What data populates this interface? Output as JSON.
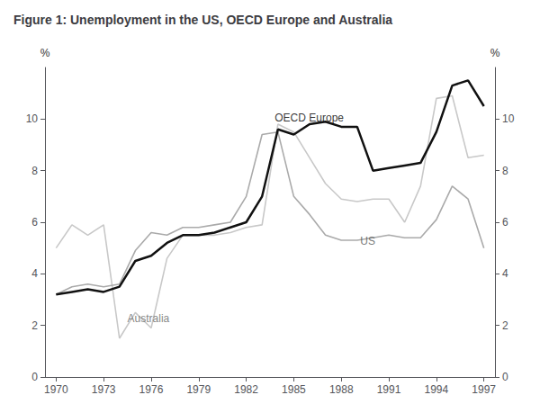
{
  "chart_data": {
    "type": "line",
    "title": "Figure 1: Unemployment in the US, OECD Europe and Australia",
    "x": [
      1970,
      1971,
      1972,
      1973,
      1974,
      1975,
      1976,
      1977,
      1978,
      1979,
      1980,
      1981,
      1982,
      1983,
      1984,
      1985,
      1986,
      1987,
      1988,
      1989,
      1990,
      1991,
      1992,
      1993,
      1994,
      1995,
      1996,
      1997
    ],
    "series": [
      {
        "name": "Australia",
        "color": "#c8c8c8",
        "values": [
          5.0,
          5.9,
          5.5,
          5.9,
          1.5,
          2.5,
          1.9,
          4.6,
          5.5,
          5.5,
          5.5,
          5.6,
          5.8,
          5.9,
          9.8,
          9.5,
          8.5,
          7.5,
          6.9,
          6.8,
          6.9,
          6.9,
          6.0,
          7.4,
          10.8,
          10.9,
          8.5,
          8.6
        ]
      },
      {
        "name": "US",
        "color": "#aaaaaa",
        "values": [
          3.2,
          3.5,
          3.6,
          3.5,
          3.6,
          4.9,
          5.6,
          5.5,
          5.8,
          5.8,
          5.9,
          6.0,
          7.0,
          9.4,
          9.5,
          7.0,
          6.3,
          5.5,
          5.3,
          5.3,
          5.4,
          5.5,
          5.4,
          5.4,
          6.1,
          7.4,
          6.9,
          5.0
        ]
      },
      {
        "name": "OECD Europe",
        "color": "#111111",
        "values": [
          3.2,
          3.3,
          3.4,
          3.3,
          3.5,
          4.5,
          4.7,
          5.2,
          5.5,
          5.5,
          5.6,
          5.8,
          6.0,
          7.0,
          9.6,
          9.4,
          9.8,
          9.9,
          9.7,
          9.7,
          8.0,
          8.1,
          8.2,
          8.3,
          9.5,
          11.3,
          11.5,
          10.5
        ]
      }
    ],
    "xlim": [
      1969.3,
      1997.7
    ],
    "xticks": [
      1970,
      1973,
      1976,
      1979,
      1982,
      1985,
      1988,
      1991,
      1994,
      1997
    ],
    "ylim": [
      0,
      12
    ],
    "yticks": [
      0,
      2,
      4,
      6,
      8,
      10
    ],
    "y2lim": [
      0,
      12
    ],
    "y2ticks": [
      0,
      2,
      4,
      6,
      8,
      10
    ],
    "ylabel": "%",
    "y2label": "%",
    "annotations": [
      {
        "text": "OECD Europe",
        "x": 1983.8,
        "y": 9.85,
        "color": "#000000"
      },
      {
        "text": "US",
        "x": 1989.2,
        "y": 5.05,
        "color": "#555555"
      },
      {
        "text": "Australia",
        "x": 1974.5,
        "y": 2.05,
        "color": "#666666"
      }
    ],
    "grid": false,
    "legend": false
  }
}
